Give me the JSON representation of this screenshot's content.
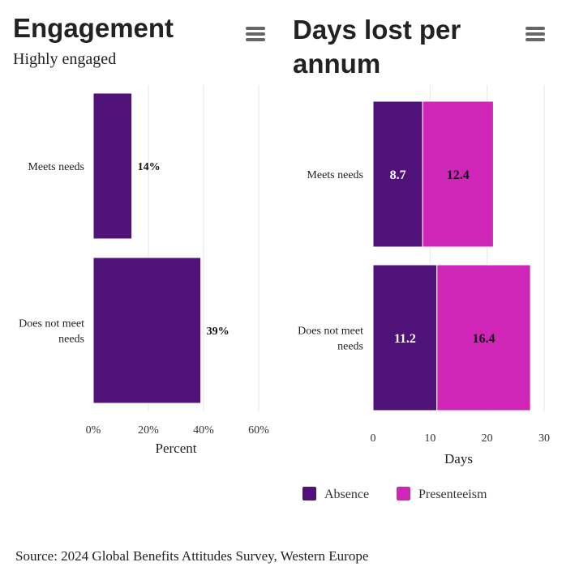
{
  "colors": {
    "absence": "#4f1278",
    "presenteeism": "#d026b8",
    "grid": "#e6e6e6"
  },
  "engagement": {
    "title": "Engagement",
    "subtitle": "Highly engaged",
    "menu_icon": "hamburger-menu-icon"
  },
  "days": {
    "title": "Days lost per annum",
    "menu_icon": "hamburger-menu-icon"
  },
  "source": "Source: 2024 Global Benefits Attitudes Survey, Western Europe",
  "chart_data": [
    {
      "type": "bar",
      "orientation": "horizontal",
      "title": "Engagement",
      "subtitle": "Highly engaged",
      "categories": [
        [
          "Meets needs"
        ],
        [
          "Does not meet",
          "needs"
        ]
      ],
      "series": [
        {
          "name": "Highly engaged",
          "values": [
            14,
            39
          ],
          "labels": [
            "14%",
            "39%"
          ]
        }
      ],
      "xlabel": "Percent",
      "xlim": [
        0,
        60
      ],
      "xticks": [
        0,
        20,
        40,
        60
      ],
      "xtick_labels": [
        "0%",
        "20%",
        "40%",
        "60%"
      ],
      "grid": true
    },
    {
      "type": "bar",
      "orientation": "horizontal",
      "stacked": true,
      "title": "Days lost per annum",
      "categories": [
        [
          "Meets needs"
        ],
        [
          "Does not meet",
          "needs"
        ]
      ],
      "series": [
        {
          "name": "Absence",
          "values": [
            8.7,
            11.2
          ],
          "labels": [
            "8.7",
            "11.2"
          ],
          "color_key": "absence"
        },
        {
          "name": "Presenteeism",
          "values": [
            12.4,
            16.4
          ],
          "labels": [
            "12.4",
            "16.4"
          ],
          "color_key": "presenteeism"
        }
      ],
      "xlabel": "Days",
      "xlim": [
        0,
        30
      ],
      "xticks": [
        0,
        10,
        20,
        30
      ],
      "xtick_labels": [
        "0",
        "10",
        "20",
        "30"
      ],
      "grid": true,
      "legend": "bottom-center"
    }
  ]
}
